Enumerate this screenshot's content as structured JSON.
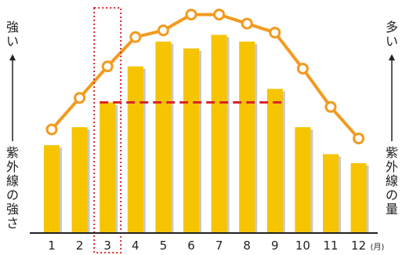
{
  "chart_data": {
    "type": "bar",
    "title": "",
    "categories": [
      "1",
      "2",
      "3",
      "4",
      "5",
      "6",
      "7",
      "8",
      "9",
      "10",
      "11",
      "12"
    ],
    "x_unit": "(月)",
    "series": [
      {
        "type": "bar",
        "axis": "left",
        "values": [
          39,
          47,
          58,
          74,
          85,
          82,
          88,
          85,
          64,
          47,
          35,
          31
        ]
      },
      {
        "type": "line",
        "axis": "right",
        "values": [
          46,
          60,
          74,
          87,
          90,
          97,
          97,
          93,
          89,
          73,
          56,
          42
        ]
      }
    ],
    "left_axis": {
      "label_top": "強い",
      "label_bottom": "紫外線の強さ",
      "range": [
        0,
        100
      ],
      "reference_line": 58
    },
    "right_axis": {
      "label_top": "多い",
      "label_bottom": "紫外線の量",
      "range": [
        0,
        100
      ]
    },
    "highlight_category": "3",
    "grid": false,
    "colors": {
      "bar": "#F6C400",
      "bar_shadow": "#C9C9C9",
      "line": "#F39A1E",
      "marker_fill": "#ffffff",
      "reference_line": "#D7262B",
      "highlight_box": "#D7262B",
      "highlight_tick": "#2E9A3E",
      "axis": "#222222"
    }
  }
}
